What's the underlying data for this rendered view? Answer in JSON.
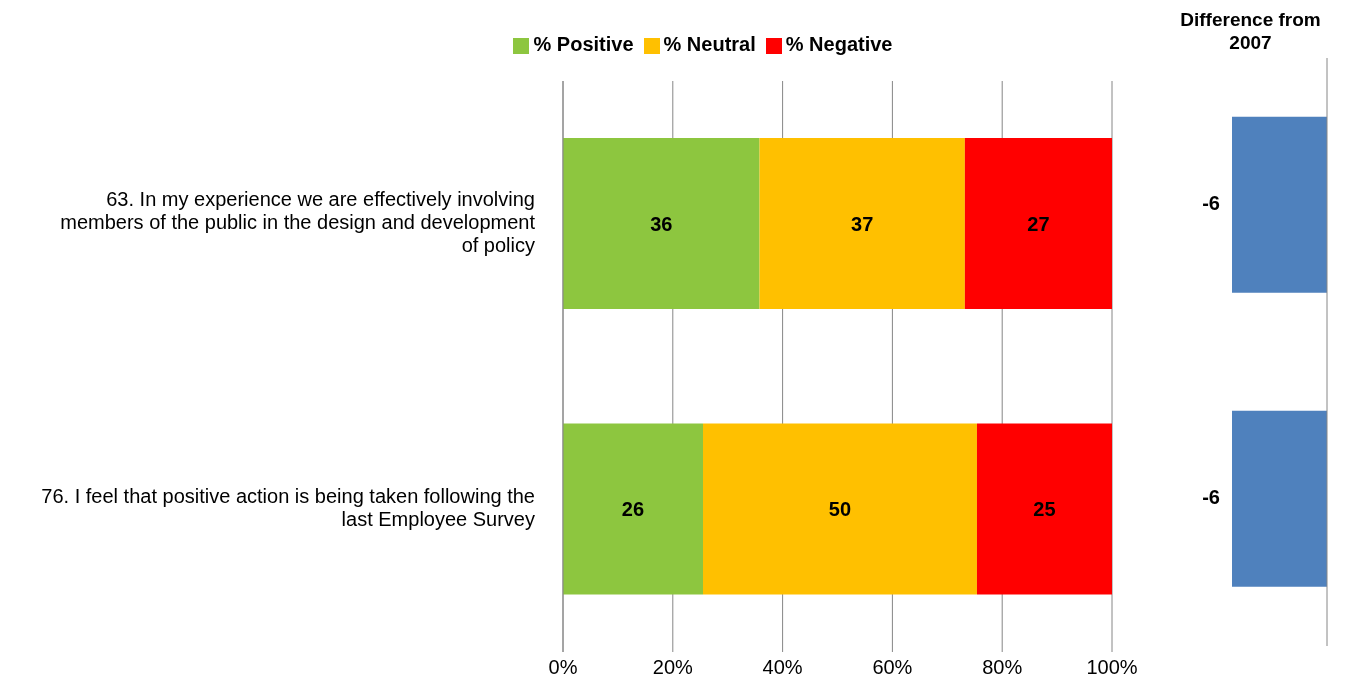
{
  "chart_data": [
    {
      "type": "bar",
      "orientation": "horizontal",
      "stacked": true,
      "categories": [
        "63. In my experience we are effectively involving members of the public in the design and development of policy",
        "76. I feel that positive action is being taken following the last Employee Survey"
      ],
      "series": [
        {
          "name": "% Positive",
          "color": "#8dc63f",
          "values": [
            35.8,
            25.5
          ],
          "value_labels": [
            "36",
            "26"
          ]
        },
        {
          "name": "% Neutral",
          "color": "#ffc000",
          "values": [
            37.4,
            49.9
          ],
          "value_labels": [
            "37",
            "50"
          ]
        },
        {
          "name": "% Negative",
          "color": "#ff0000",
          "values": [
            26.8,
            24.6
          ],
          "value_labels": [
            "27",
            "25"
          ]
        }
      ],
      "xlim": [
        0,
        100
      ],
      "xticks": [
        {
          "value": 0,
          "label": "0%"
        },
        {
          "value": 20,
          "label": "20%"
        },
        {
          "value": 40,
          "label": "40%"
        },
        {
          "value": 60,
          "label": "60%"
        },
        {
          "value": 80,
          "label": "80%"
        },
        {
          "value": 100,
          "label": "100%"
        }
      ],
      "grid": "x",
      "legend": "top"
    },
    {
      "type": "bar",
      "orientation": "horizontal",
      "title": "Difference from 2007",
      "categories": [
        null,
        null
      ],
      "values": [
        -6,
        -6
      ],
      "color": "#4f81bd",
      "data_labels": true,
      "tick_labels": false
    }
  ]
}
